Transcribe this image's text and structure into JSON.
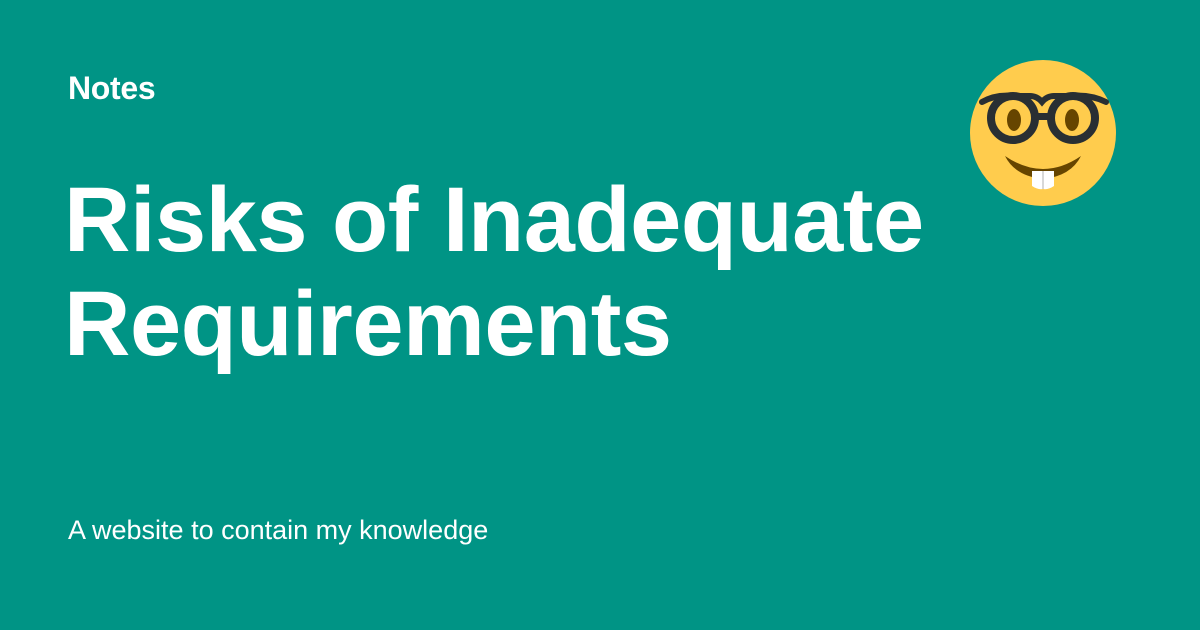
{
  "site": {
    "name": "Notes",
    "description": "A website to contain my knowledge"
  },
  "page": {
    "title": "Risks of Inadequate Requirements"
  },
  "icon": {
    "name": "nerd-face-icon"
  },
  "colors": {
    "background": "#009485",
    "text": "#ffffff",
    "emoji_face": "#FFCC4D",
    "emoji_features": "#664500"
  }
}
